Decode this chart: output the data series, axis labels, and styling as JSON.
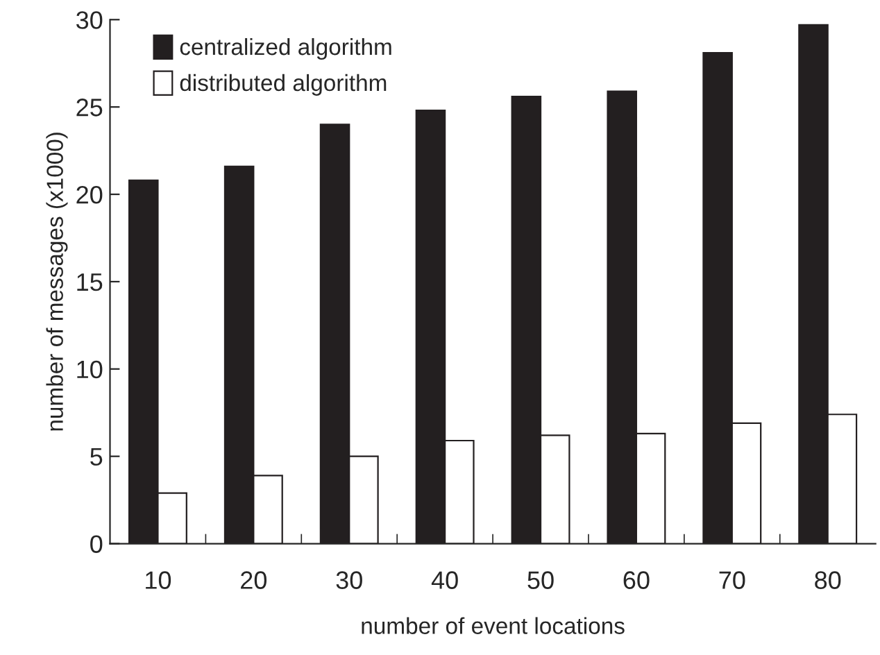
{
  "chart_data": {
    "type": "bar",
    "xlabel": "number of event locations",
    "ylabel": "number of messages (x1000)",
    "categories": [
      "10",
      "20",
      "30",
      "40",
      "50",
      "60",
      "70",
      "80"
    ],
    "series": [
      {
        "name": "centralized algorithm",
        "color": "#231f20",
        "values": [
          20.8,
          21.6,
          24.0,
          24.8,
          25.6,
          25.9,
          28.1,
          29.7
        ]
      },
      {
        "name": "distributed algorithm",
        "color": "#ffffff",
        "values": [
          2.9,
          3.9,
          5.0,
          5.9,
          6.2,
          6.3,
          6.9,
          7.4
        ]
      }
    ],
    "ylim": [
      0,
      30
    ],
    "yticks": [
      0,
      5,
      10,
      15,
      20,
      25,
      30
    ],
    "grid": false,
    "legend": "top left"
  }
}
